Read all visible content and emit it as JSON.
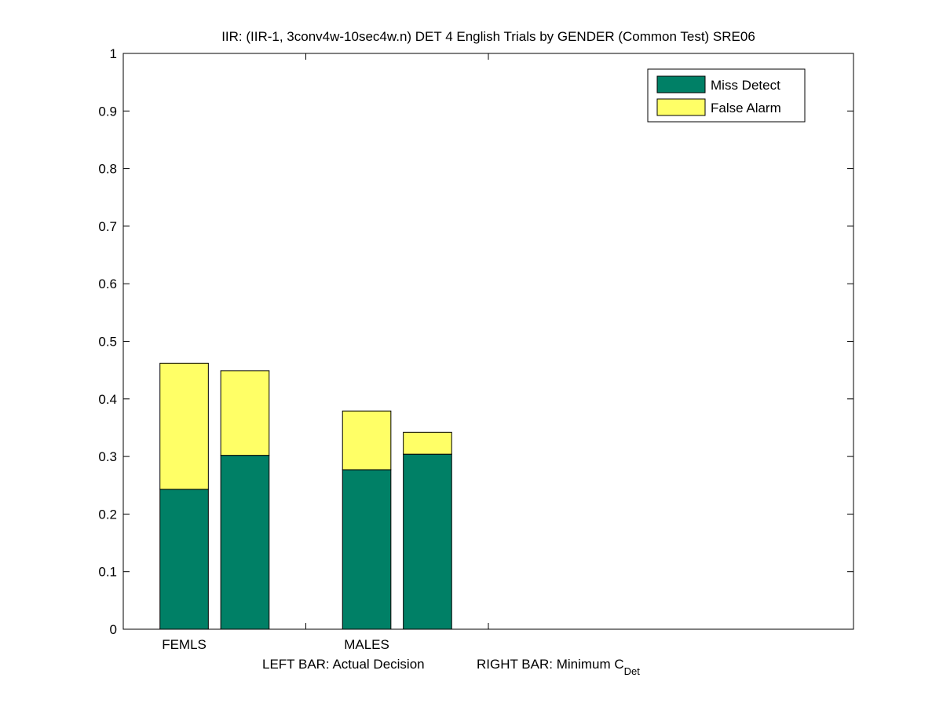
{
  "chart_data": {
    "type": "bar",
    "title": "IIR: (IIR-1, 3conv4w-10sec4w.n) DET 4 English Trials by GENDER (Common Test) SRE06",
    "categories": [
      "FEMLS",
      "MALES"
    ],
    "bar_roles": [
      "Actual Decision",
      "Minimum C_Det"
    ],
    "series": [
      {
        "name": "Miss Detect",
        "color": "#008066",
        "values": [
          [
            0.243,
            0.302
          ],
          [
            0.277,
            0.304
          ]
        ]
      },
      {
        "name": "False Alarm",
        "color": "#ffff66",
        "values": [
          [
            0.219,
            0.147
          ],
          [
            0.102,
            0.038
          ]
        ]
      }
    ],
    "stacked": true,
    "xlabel": {
      "left": "LEFT BAR: Actual Decision",
      "right": "RIGHT BAR: Minimum C",
      "right_subscript": "Det"
    },
    "ylim": [
      0,
      1
    ],
    "yticks": [
      "0",
      "0.1",
      "0.2",
      "0.3",
      "0.4",
      "0.5",
      "0.6",
      "0.7",
      "0.8",
      "0.9",
      "1"
    ],
    "grid": false,
    "legend_position": "top-right"
  }
}
